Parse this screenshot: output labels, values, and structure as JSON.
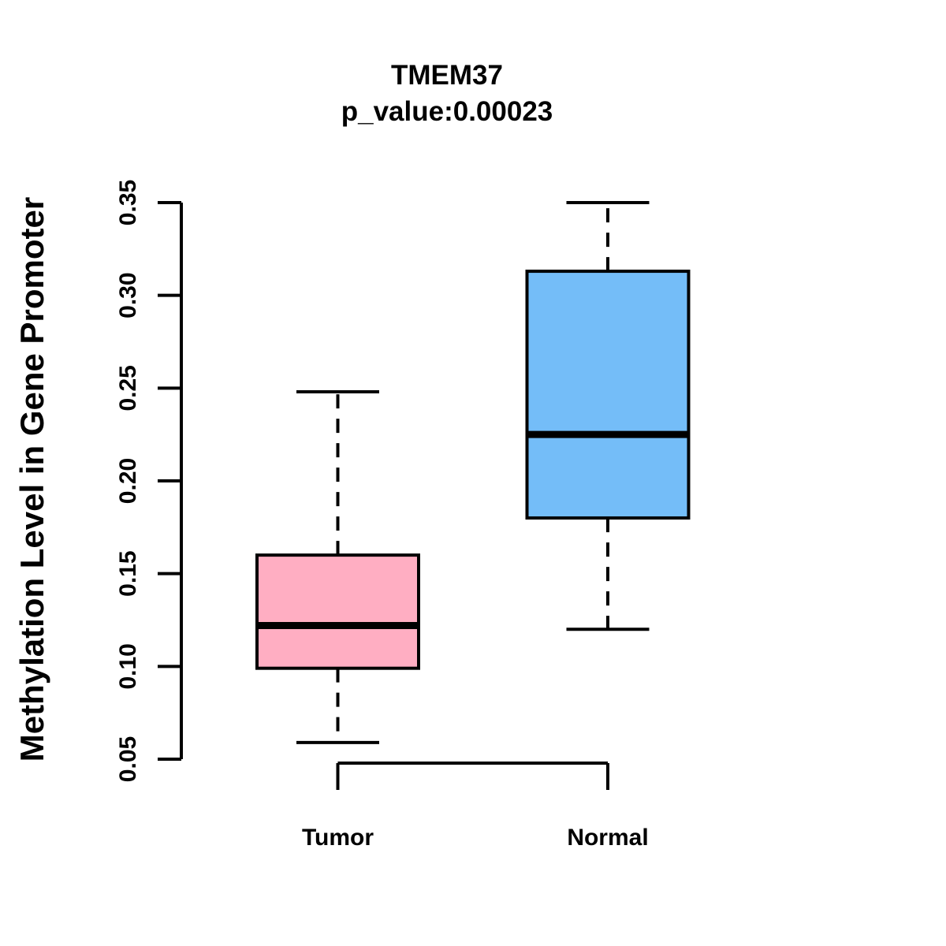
{
  "chart_data": {
    "type": "boxplot",
    "title": "TMEM37",
    "subtitle": "p_value:0.00023",
    "ylabel": "Methylation Level in Gene Promoter",
    "xlabel": "",
    "ylim": [
      0.05,
      0.35
    ],
    "yticks": [
      0.05,
      0.1,
      0.15,
      0.2,
      0.25,
      0.3,
      0.35
    ],
    "grid": false,
    "legend": "none",
    "categories": [
      "Tumor",
      "Normal"
    ],
    "series": [
      {
        "name": "Tumor",
        "whisker_low": 0.059,
        "q1": 0.099,
        "median": 0.122,
        "q3": 0.16,
        "whisker_high": 0.248,
        "fill": "#FFAEC2"
      },
      {
        "name": "Normal",
        "whisker_low": 0.12,
        "q1": 0.18,
        "median": 0.225,
        "q3": 0.313,
        "whisker_high": 0.35,
        "fill": "#74BDF8"
      }
    ],
    "colors": {
      "stroke": "#000000",
      "background": "#ffffff",
      "tumor_fill": "#FFAEC2",
      "normal_fill": "#74BDF8"
    }
  }
}
